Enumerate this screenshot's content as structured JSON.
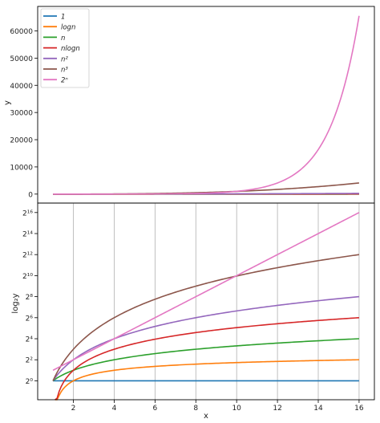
{
  "chart_data": [
    {
      "type": "line",
      "title": "",
      "xlabel": "",
      "ylabel": "y",
      "xlim": [
        0.25,
        16.75
      ],
      "ylim": [
        -3300,
        69000
      ],
      "yticks": [
        0,
        10000,
        20000,
        30000,
        40000,
        50000,
        60000
      ],
      "ytick_labels": [
        "0",
        "10000",
        "20000",
        "30000",
        "40000",
        "50000",
        "60000"
      ],
      "grid": false,
      "legend_position": "top-left",
      "series": [
        {
          "name": "1",
          "color": "#1f77b4",
          "formula": "1"
        },
        {
          "name": "logn",
          "color": "#ff7f0e",
          "formula": "log2"
        },
        {
          "name": "n",
          "color": "#2ca02c",
          "formula": "n"
        },
        {
          "name": "nlogn",
          "color": "#d62728",
          "formula": "nlog2"
        },
        {
          "name": "n²",
          "color": "#9467bd",
          "formula": "n2"
        },
        {
          "name": "n³",
          "color": "#8c564b",
          "formula": "n3"
        },
        {
          "name": "2ⁿ",
          "color": "#e377c2",
          "formula": "exp2"
        }
      ],
      "x": [
        1,
        2,
        3,
        4,
        5,
        6,
        7,
        8,
        9,
        10,
        11,
        12,
        13,
        14,
        15,
        16
      ],
      "values": {
        "1": [
          1,
          1,
          1,
          1,
          1,
          1,
          1,
          1,
          1,
          1,
          1,
          1,
          1,
          1,
          1,
          1
        ],
        "logn": [
          0,
          1,
          1.58,
          2,
          2.32,
          2.58,
          2.81,
          3,
          3.17,
          3.32,
          3.46,
          3.58,
          3.7,
          3.81,
          3.91,
          4
        ],
        "n": [
          1,
          2,
          3,
          4,
          5,
          6,
          7,
          8,
          9,
          10,
          11,
          12,
          13,
          14,
          15,
          16
        ],
        "nlogn": [
          0,
          2,
          4.75,
          8,
          11.61,
          15.51,
          19.65,
          24,
          28.53,
          33.22,
          38.05,
          43.02,
          48.11,
          53.3,
          58.6,
          64
        ],
        "n²": [
          1,
          4,
          9,
          16,
          25,
          36,
          49,
          64,
          81,
          100,
          121,
          144,
          169,
          196,
          225,
          256
        ],
        "n³": [
          1,
          8,
          27,
          64,
          125,
          216,
          343,
          512,
          729,
          1000,
          1331,
          1728,
          2197,
          2744,
          3375,
          4096
        ],
        "2ⁿ": [
          2,
          4,
          8,
          16,
          32,
          64,
          128,
          256,
          512,
          1024,
          2048,
          4096,
          8192,
          16384,
          32768,
          65536
        ]
      }
    },
    {
      "type": "line",
      "title": "",
      "xlabel": "x",
      "ylabel": "log₂y",
      "xlim": [
        0.25,
        16.75
      ],
      "ylim": [
        -1.8,
        16.9
      ],
      "yscale": "log2",
      "xticks": [
        2,
        4,
        6,
        8,
        10,
        12,
        14,
        16
      ],
      "xtick_labels": [
        "2",
        "4",
        "6",
        "8",
        "10",
        "12",
        "14",
        "16"
      ],
      "yticks": [
        0,
        2,
        4,
        6,
        8,
        10,
        12,
        14,
        16
      ],
      "ytick_labels": [
        "2⁰",
        "2²",
        "2⁴",
        "2⁶",
        "2⁸",
        "2¹⁰",
        "2¹²",
        "2¹⁴",
        "2¹⁶"
      ],
      "grid": "x",
      "series": [
        {
          "name": "1",
          "color": "#1f77b4",
          "log2_values": [
            0,
            0,
            0,
            0,
            0,
            0,
            0,
            0,
            0,
            0,
            0,
            0,
            0,
            0,
            0,
            0
          ]
        },
        {
          "name": "logn",
          "color": "#ff7f0e",
          "log2_values": [
            null,
            0,
            0.66,
            1,
            1.22,
            1.37,
            1.49,
            1.58,
            1.66,
            1.73,
            1.79,
            1.84,
            1.89,
            1.93,
            1.97,
            2
          ]
        },
        {
          "name": "n",
          "color": "#2ca02c",
          "log2_values": [
            0,
            1,
            1.58,
            2,
            2.32,
            2.58,
            2.81,
            3,
            3.17,
            3.32,
            3.46,
            3.58,
            3.7,
            3.81,
            3.91,
            4
          ]
        },
        {
          "name": "nlogn",
          "color": "#d62728",
          "log2_values": [
            null,
            1,
            2.25,
            3,
            3.54,
            3.96,
            4.3,
            4.58,
            4.83,
            5.05,
            5.25,
            5.43,
            5.59,
            5.74,
            5.87,
            6
          ]
        },
        {
          "name": "n²",
          "color": "#9467bd",
          "log2_values": [
            0,
            2,
            3.17,
            4,
            4.64,
            5.17,
            5.61,
            6,
            6.34,
            6.64,
            6.92,
            7.17,
            7.4,
            7.61,
            7.81,
            8
          ]
        },
        {
          "name": "n³",
          "color": "#8c564b",
          "log2_values": [
            0,
            3,
            4.75,
            6,
            6.97,
            7.75,
            8.42,
            9,
            9.51,
            9.97,
            10.38,
            10.75,
            11.1,
            11.42,
            11.72,
            12
          ]
        },
        {
          "name": "2ⁿ",
          "color": "#e377c2",
          "log2_values": [
            1,
            2,
            3,
            4,
            5,
            6,
            7,
            8,
            9,
            10,
            11,
            12,
            13,
            14,
            15,
            16
          ]
        }
      ]
    }
  ],
  "legend": {
    "entries": [
      {
        "label": "1",
        "color": "#1f77b4"
      },
      {
        "label": "logn",
        "color": "#ff7f0e"
      },
      {
        "label": "n",
        "color": "#2ca02c"
      },
      {
        "label": "nlogn",
        "color": "#d62728"
      },
      {
        "label": "n²",
        "color": "#9467bd"
      },
      {
        "label": "n³",
        "color": "#8c564b"
      },
      {
        "label": "2ⁿ",
        "color": "#e377c2"
      }
    ]
  }
}
